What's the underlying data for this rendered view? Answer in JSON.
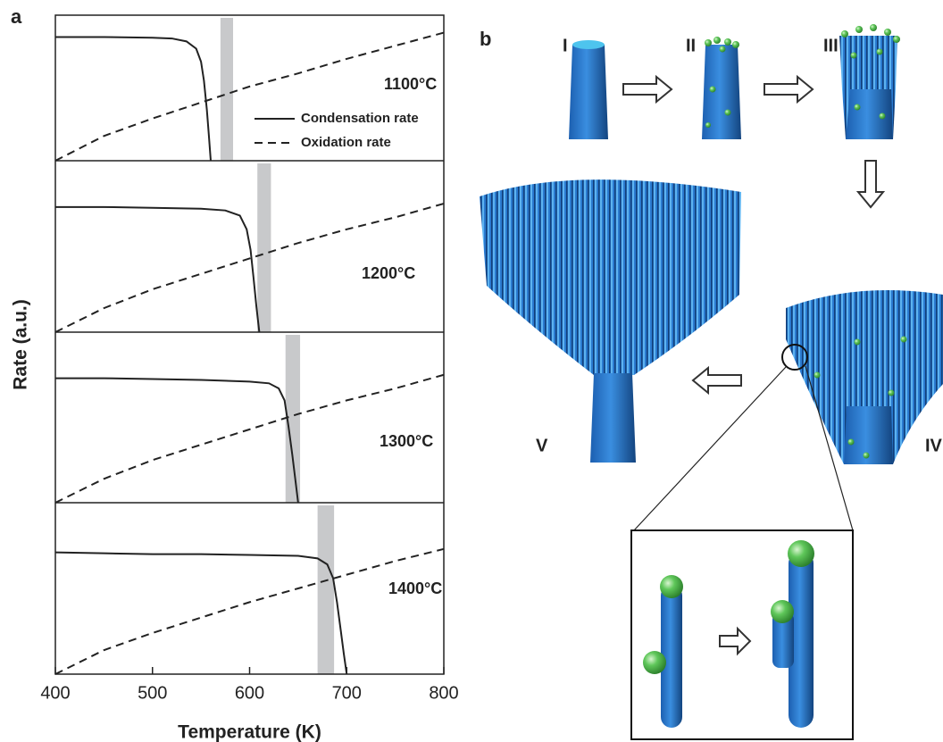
{
  "panel_labels": [
    "a",
    "b"
  ],
  "chart_data": [
    {
      "type": "line",
      "annotation": "1100°C",
      "y_label": "Rate (a.u.)",
      "xlim": [
        400,
        800
      ],
      "ylim": [
        0,
        1
      ],
      "highlight_band": [
        570,
        583
      ],
      "series": [
        {
          "name": "Condensation rate",
          "color": "#222222",
          "line_style": "solid",
          "x": [
            400,
            450,
            500,
            520,
            535,
            545,
            550,
            553,
            556,
            558,
            560
          ],
          "values": [
            0.85,
            0.85,
            0.845,
            0.84,
            0.82,
            0.77,
            0.68,
            0.55,
            0.35,
            0.18,
            0
          ]
        },
        {
          "name": "Oxidation rate",
          "color": "#222222",
          "line_style": "dashed",
          "x": [
            400,
            450,
            500,
            550,
            600,
            650,
            700,
            750,
            800
          ],
          "values": [
            0,
            0.17,
            0.29,
            0.4,
            0.51,
            0.6,
            0.7,
            0.79,
            0.88
          ]
        }
      ]
    },
    {
      "type": "line",
      "annotation": "1200°C",
      "xlim": [
        400,
        800
      ],
      "ylim": [
        0,
        1
      ],
      "highlight_band": [
        608,
        622
      ],
      "series": [
        {
          "color": "#222222",
          "line_style": "solid",
          "x": [
            400,
            450,
            500,
            550,
            575,
            590,
            597,
            601,
            604,
            607,
            610
          ],
          "values": [
            0.73,
            0.73,
            0.725,
            0.72,
            0.71,
            0.68,
            0.6,
            0.48,
            0.32,
            0.15,
            0
          ]
        },
        {
          "color": "#222222",
          "line_style": "dashed",
          "x": [
            400,
            450,
            500,
            550,
            600,
            650,
            700,
            750,
            800
          ],
          "values": [
            0,
            0.14,
            0.25,
            0.34,
            0.43,
            0.52,
            0.6,
            0.67,
            0.75
          ]
        }
      ]
    },
    {
      "type": "line",
      "annotation": "1300°C",
      "xlim": [
        400,
        800
      ],
      "ylim": [
        0,
        1
      ],
      "highlight_band": [
        637,
        652
      ],
      "series": [
        {
          "color": "#222222",
          "line_style": "solid",
          "x": [
            400,
            450,
            500,
            550,
            600,
            620,
            630,
            636,
            640,
            644,
            647,
            650
          ],
          "values": [
            0.73,
            0.73,
            0.725,
            0.72,
            0.71,
            0.7,
            0.67,
            0.6,
            0.45,
            0.28,
            0.14,
            0
          ]
        },
        {
          "color": "#222222",
          "line_style": "dashed",
          "x": [
            400,
            450,
            500,
            550,
            600,
            650,
            700,
            750,
            800
          ],
          "values": [
            0,
            0.14,
            0.25,
            0.34,
            0.43,
            0.52,
            0.6,
            0.67,
            0.75
          ]
        }
      ]
    },
    {
      "type": "line",
      "annotation": "1400°C",
      "x_label": "Temperature (K)",
      "xlim": [
        400,
        800
      ],
      "ylim": [
        0,
        1
      ],
      "xticks": [
        400,
        500,
        600,
        700,
        800
      ],
      "highlight_band": [
        670,
        687
      ],
      "series": [
        {
          "color": "#222222",
          "line_style": "solid",
          "x": [
            400,
            450,
            500,
            550,
            600,
            650,
            670,
            680,
            686,
            690,
            694,
            697,
            700
          ],
          "values": [
            0.71,
            0.705,
            0.7,
            0.7,
            0.695,
            0.69,
            0.675,
            0.64,
            0.56,
            0.42,
            0.25,
            0.12,
            0
          ]
        },
        {
          "color": "#222222",
          "line_style": "dashed",
          "x": [
            400,
            450,
            500,
            550,
            600,
            650,
            700,
            750,
            800
          ],
          "values": [
            0,
            0.14,
            0.24,
            0.33,
            0.42,
            0.5,
            0.58,
            0.66,
            0.73
          ]
        }
      ]
    }
  ],
  "diagram": {
    "stages": [
      "I",
      "II",
      "III",
      "IV",
      "V"
    ]
  }
}
